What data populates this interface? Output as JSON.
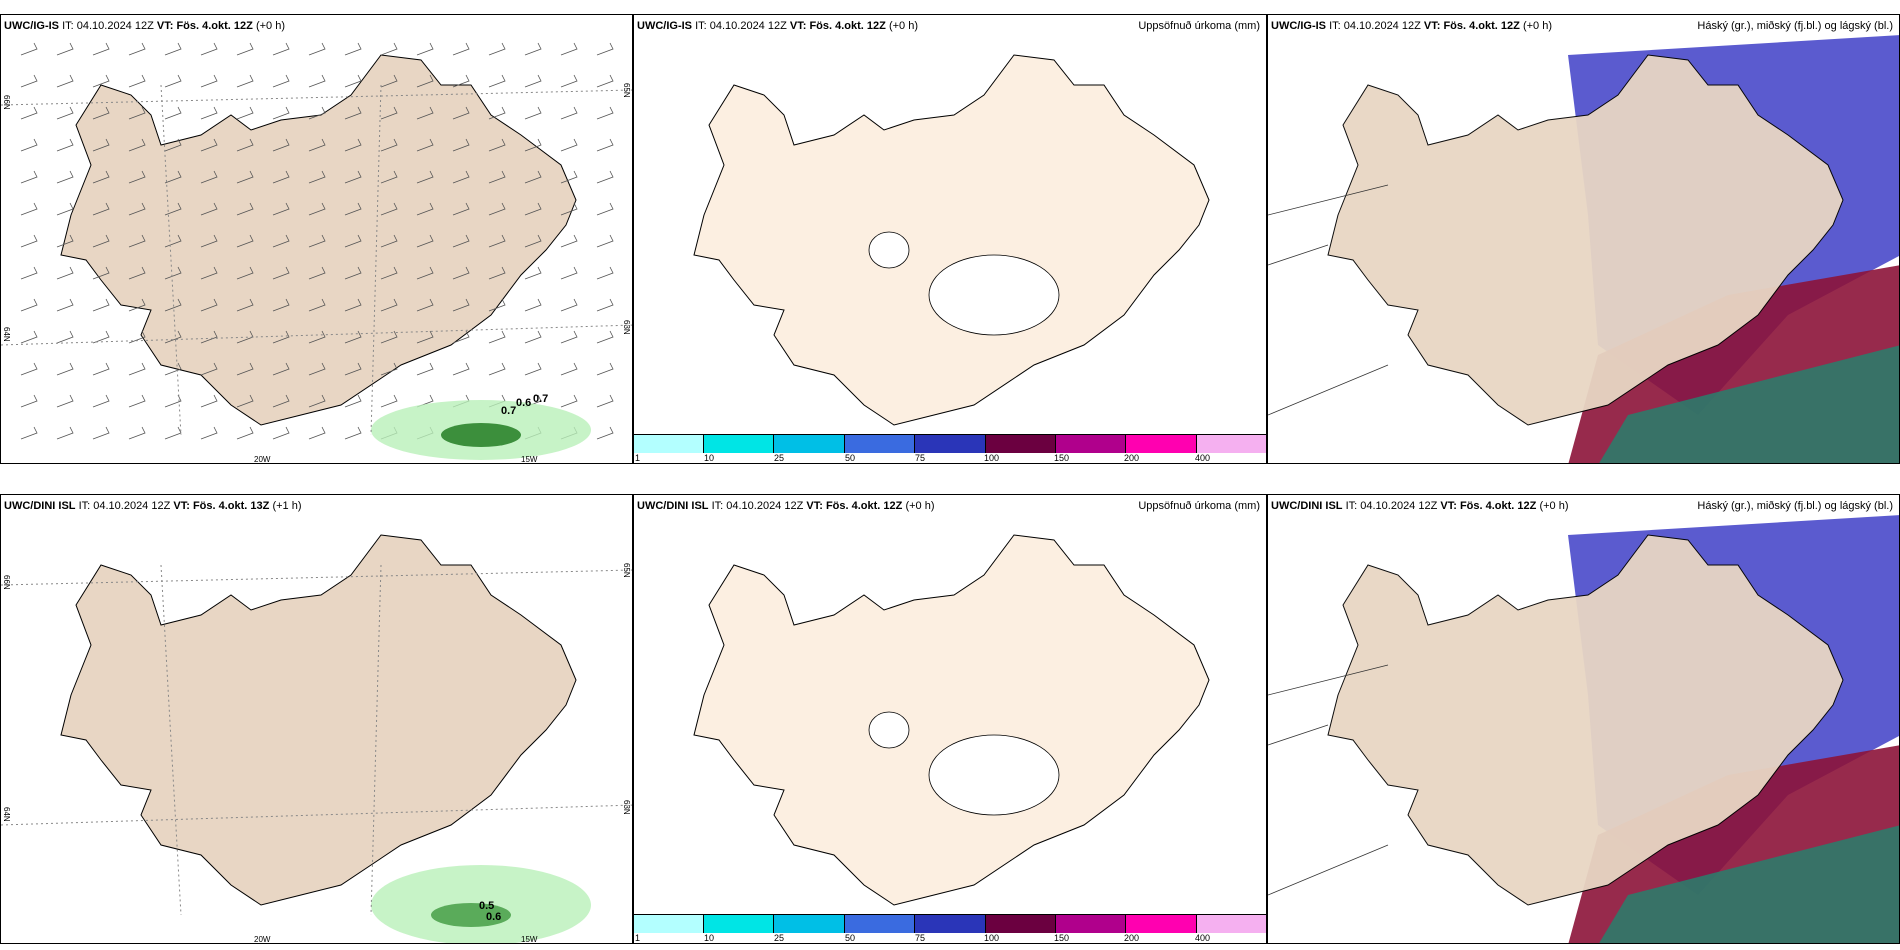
{
  "panels": {
    "top_left": {
      "model": "UWC/IG-IS",
      "it_label": "IT:",
      "it": "04.10.2024 12Z",
      "vt_label": "VT:",
      "vt": "Fös. 4.okt. 12Z",
      "offset": "(+0 h)"
    },
    "top_mid": {
      "model": "UWC/IG-IS",
      "it_label": "IT:",
      "it": "04.10.2024 12Z",
      "vt_label": "VT:",
      "vt": "Fös. 4.okt. 12Z",
      "offset": "(+0 h)",
      "right_title": "Uppsöfnuð úrkoma (mm)"
    },
    "top_right": {
      "model": "UWC/IG-IS",
      "it_label": "IT:",
      "it": "04.10.2024 12Z",
      "vt_label": "VT:",
      "vt": "Fös. 4.okt. 12Z",
      "offset": "(+0 h)",
      "right_title": "Háský (gr.), miðský (fj.bl.) og lágský (bl.)"
    },
    "bot_left": {
      "model": "UWC/DINI ISL",
      "it_label": "IT:",
      "it": "04.10.2024 12Z",
      "vt_label": "VT:",
      "vt": "Fös. 4.okt. 13Z",
      "offset": "(+1 h)"
    },
    "bot_mid": {
      "model": "UWC/DINI ISL",
      "it_label": "IT:",
      "it": "04.10.2024 12Z",
      "vt_label": "VT:",
      "vt": "Fös. 4.okt. 12Z",
      "offset": "(+0 h)",
      "right_title": "Uppsöfnuð úrkoma (mm)"
    },
    "bot_right": {
      "model": "UWC/DINI ISL",
      "it_label": "IT:",
      "it": "04.10.2024 12Z",
      "vt_label": "VT:",
      "vt": "Fös. 4.okt. 12Z",
      "offset": "(+0 h)",
      "right_title": "Háský (gr.), miðský (fj.bl.) og lágský (bl.)"
    }
  },
  "grid_labels": {
    "lon_20": "20W",
    "lon_15": "15W",
    "lat_66": "66N",
    "lat_64": "64N",
    "lat_65": "65N",
    "lat_63": "63N"
  },
  "precip_top": [
    "0.7",
    "0.6",
    "0.7"
  ],
  "precip_bot": [
    "0.5",
    "0.6"
  ],
  "colorbar": {
    "ticks": [
      "1",
      "10",
      "25",
      "50",
      "75",
      "100",
      "150",
      "200",
      "400"
    ],
    "colors": [
      "#b3ffff",
      "#00e5e5",
      "#00bfe6",
      "#3a6be0",
      "#2a35b8",
      "#6b0040",
      "#b0008c",
      "#ff00b0",
      "#f5b0f0"
    ]
  },
  "colors": {
    "land": "#e8d6c4",
    "land_plain": "#fcefe1",
    "cloud_high": "#3e3ec7",
    "cloud_mid": "#8c1338",
    "cloud_low": "#2e7a6a"
  }
}
